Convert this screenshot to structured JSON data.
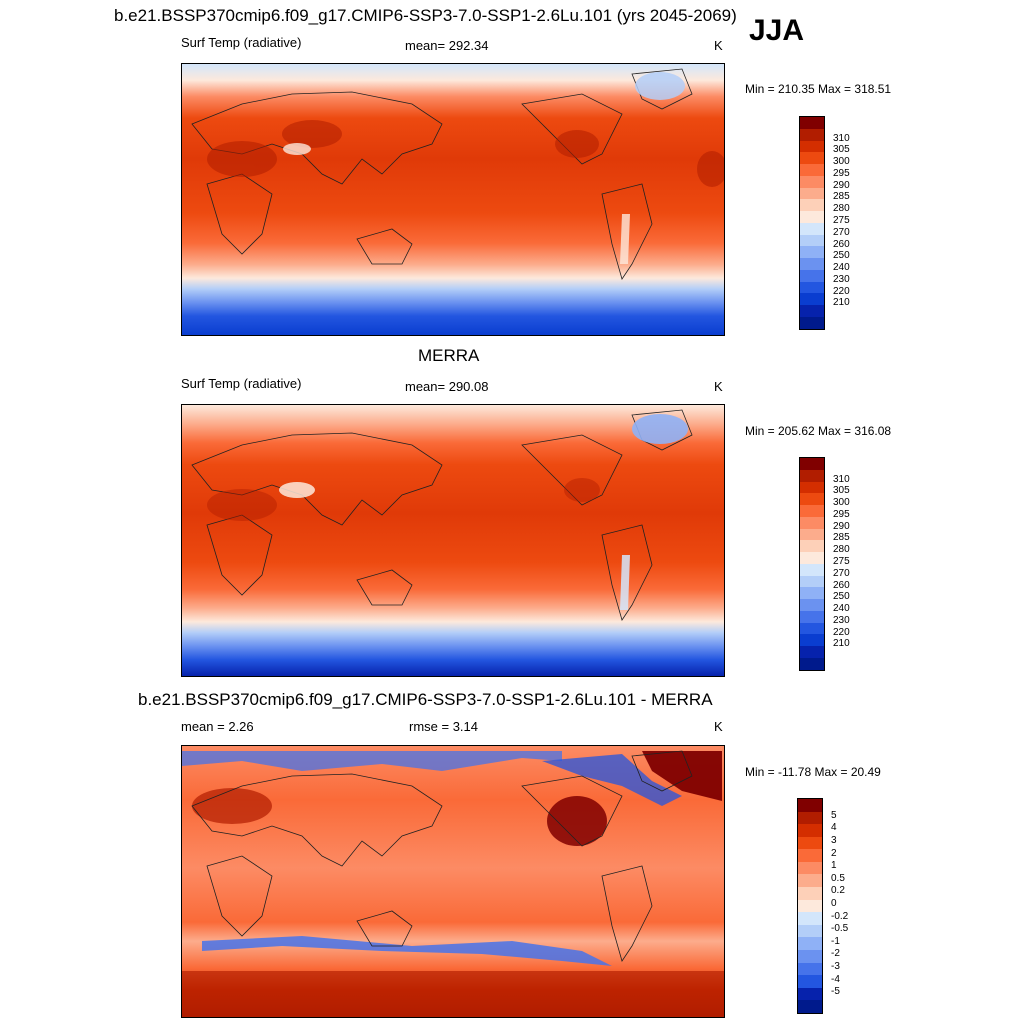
{
  "header": {
    "title": "b.e21.BSSP370cmip6.f09_g17.CMIP6-SSP3-7.0-SSP1-2.6Lu.101 (yrs 2045-2069)",
    "season": "JJA"
  },
  "panels": [
    {
      "title": "",
      "left_label": "Surf Temp (radiative)",
      "center_label": "mean= 292.34",
      "unit": "K",
      "minmax": "Min = 210.35 Max = 318.51",
      "colorbar": {
        "colors": [
          "#800000",
          "#b11d00",
          "#d42e00",
          "#ed4a10",
          "#fa6a38",
          "#fc8b64",
          "#fcac8c",
          "#fdd0b8",
          "#fde9dc",
          "#d3e6fb",
          "#b3cef8",
          "#8fb1f6",
          "#6b92f0",
          "#4673ea",
          "#2356e0",
          "#0a3dd0",
          "#0622ac",
          "#001a8c"
        ],
        "labels": [
          "310",
          "305",
          "300",
          "295",
          "290",
          "285",
          "280",
          "275",
          "270",
          "260",
          "250",
          "240",
          "230",
          "220",
          "210"
        ]
      }
    },
    {
      "title": "MERRA",
      "left_label": "Surf Temp (radiative)",
      "center_label": "mean= 290.08",
      "unit": "K",
      "minmax": "Min = 205.62 Max = 316.08",
      "colorbar": {
        "colors": [
          "#800000",
          "#b11d00",
          "#d42e00",
          "#ed4a10",
          "#fa6a38",
          "#fc8b64",
          "#fcac8c",
          "#fdd0b8",
          "#fde9dc",
          "#d3e6fb",
          "#b3cef8",
          "#8fb1f6",
          "#6b92f0",
          "#4673ea",
          "#2356e0",
          "#0a3dd0",
          "#0622ac",
          "#001a8c"
        ],
        "labels": [
          "310",
          "305",
          "300",
          "295",
          "290",
          "285",
          "280",
          "275",
          "270",
          "260",
          "250",
          "240",
          "230",
          "220",
          "210"
        ]
      }
    },
    {
      "title": "b.e21.BSSP370cmip6.f09_g17.CMIP6-SSP3-7.0-SSP1-2.6Lu.101 - MERRA",
      "left_label": "mean =   2.26",
      "center_label": "rmse =   3.14",
      "unit": "K",
      "minmax": "Min = -11.78 Max =  20.49",
      "colorbar": {
        "colors": [
          "#800000",
          "#b11d00",
          "#d42e00",
          "#ed4a10",
          "#fa6a38",
          "#fc8b64",
          "#fcac8c",
          "#fdd0b8",
          "#fde9dc",
          "#d3e6fb",
          "#b3cef8",
          "#8fb1f6",
          "#6b92f0",
          "#4673ea",
          "#2356e0",
          "#0622ac",
          "#001a8c"
        ],
        "labels": [
          "5",
          "4",
          "3",
          "2",
          "1",
          "0.5",
          "0.2",
          "0",
          "-0.2",
          "-0.5",
          "-1",
          "-2",
          "-3",
          "-4",
          "-5"
        ]
      }
    }
  ],
  "chart_data": [
    {
      "type": "heatmap",
      "title": "b.e21.BSSP370cmip6.f09_g17.CMIP6-SSP3-7.0-SSP1-2.6Lu.101 (yrs 2045-2069)",
      "variable": "Surf Temp (radiative)",
      "season": "JJA",
      "unit": "K",
      "mean": 292.34,
      "min": 210.35,
      "max": 318.51,
      "contour_levels": [
        210,
        220,
        230,
        240,
        250,
        260,
        270,
        275,
        280,
        285,
        290,
        295,
        300,
        305,
        310
      ]
    },
    {
      "type": "heatmap",
      "title": "MERRA",
      "variable": "Surf Temp (radiative)",
      "unit": "K",
      "mean": 290.08,
      "min": 205.62,
      "max": 316.08,
      "contour_levels": [
        210,
        220,
        230,
        240,
        250,
        260,
        270,
        275,
        280,
        285,
        290,
        295,
        300,
        305,
        310
      ]
    },
    {
      "type": "heatmap",
      "title": "b.e21.BSSP370cmip6.f09_g17.CMIP6-SSP3-7.0-SSP1-2.6Lu.101 - MERRA",
      "unit": "K",
      "mean": 2.26,
      "rmse": 3.14,
      "min": -11.78,
      "max": 20.49,
      "contour_levels": [
        -5,
        -4,
        -3,
        -2,
        -1,
        -0.5,
        -0.2,
        0,
        0.2,
        0.5,
        1,
        2,
        3,
        4,
        5
      ]
    }
  ]
}
